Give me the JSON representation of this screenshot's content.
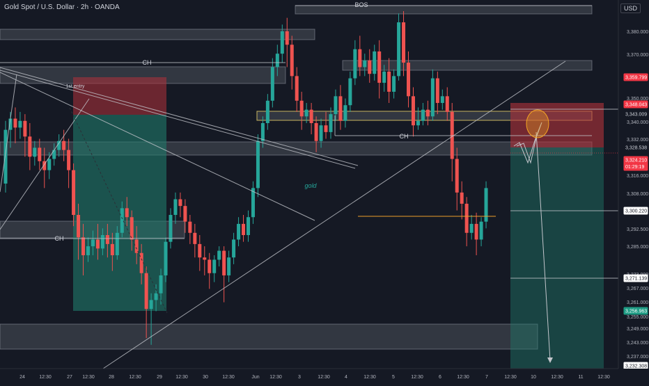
{
  "header": {
    "symbol": "Gold Spot / U.S. Dollar · 2h · OANDA",
    "currency": "USD"
  },
  "colors": {
    "background": "#151924",
    "up": "#26a69a",
    "down": "#ef5350",
    "zone": "#6b6f78",
    "zone_border": "#9aa0aa",
    "highlight_zone": "#c8b560",
    "stop": "#b2323b",
    "target": "#1f7a6b",
    "line": "#c3c6cc",
    "last_price": "#f23645",
    "target_tag": "#1e9c84",
    "signal_line": "#f0a02a"
  },
  "chart_data": {
    "type": "candlestick",
    "title": "",
    "ylim": [
      3229,
      3401
    ],
    "x_ticks": [
      "24",
      "12:30",
      "27",
      "12:30",
      "28",
      "12:30",
      "29",
      "12:30",
      "30",
      "12:30",
      "Jun",
      "12:30",
      "3",
      "12:30",
      "4",
      "12:30",
      "5",
      "12:30",
      "6",
      "12:30",
      "7",
      "12:30",
      "10",
      "12:30",
      "11",
      "12:30"
    ],
    "y_ticks": [
      "3,380.000",
      "3,370.000",
      "3,350.000",
      "3,340.000",
      "3,332.000",
      "3,316.000",
      "3,308.000",
      "3,292.500",
      "3,285.000",
      "3,273.000",
      "3,267.000",
      "3,261.000",
      "3,255.000",
      "3,249.000",
      "3,243.000",
      "3,237.000"
    ],
    "price_tags": [
      {
        "value": "3,359.799",
        "kind": "red"
      },
      {
        "value": "3,348.043",
        "kind": "red"
      },
      {
        "value": "3,343.009",
        "kind": "plain"
      },
      {
        "value": "3,328.538",
        "kind": "plain"
      },
      {
        "value": "3,324.210",
        "kind": "red",
        "sub": "01:29:19"
      },
      {
        "value": "3,300.220",
        "kind": "outline"
      },
      {
        "value": "3,271.139",
        "kind": "outline"
      },
      {
        "value": "3,256.963",
        "kind": "green"
      },
      {
        "value": "3,232.308",
        "kind": "outline"
      }
    ],
    "labels": {
      "bos": "BOS",
      "ch_top": "CH",
      "ch_mid": "CH",
      "ch_low": "CH",
      "first_entry": "1st entry",
      "gold": "gold"
    },
    "candles": [
      {
        "o": 3324,
        "h": 3352,
        "c": 3348,
        "l": 3320
      },
      {
        "o": 3348,
        "h": 3356,
        "c": 3353,
        "l": 3340
      },
      {
        "o": 3353,
        "h": 3358,
        "c": 3349,
        "l": 3342
      },
      {
        "o": 3349,
        "h": 3356,
        "c": 3352,
        "l": 3344
      },
      {
        "o": 3352,
        "h": 3355,
        "c": 3345,
        "l": 3336
      },
      {
        "o": 3345,
        "h": 3351,
        "c": 3336,
        "l": 3330
      },
      {
        "o": 3336,
        "h": 3343,
        "c": 3340,
        "l": 3332
      },
      {
        "o": 3340,
        "h": 3344,
        "c": 3334,
        "l": 3330
      },
      {
        "o": 3334,
        "h": 3340,
        "c": 3330,
        "l": 3322
      },
      {
        "o": 3330,
        "h": 3338,
        "c": 3335,
        "l": 3326
      },
      {
        "o": 3335,
        "h": 3342,
        "c": 3339,
        "l": 3332
      },
      {
        "o": 3339,
        "h": 3346,
        "c": 3343,
        "l": 3336
      },
      {
        "o": 3343,
        "h": 3348,
        "c": 3339,
        "l": 3334
      },
      {
        "o": 3339,
        "h": 3344,
        "c": 3330,
        "l": 3322
      },
      {
        "o": 3330,
        "h": 3333,
        "c": 3310,
        "l": 3305
      },
      {
        "o": 3310,
        "h": 3315,
        "c": 3300,
        "l": 3290
      },
      {
        "o": 3300,
        "h": 3306,
        "c": 3292,
        "l": 3283
      },
      {
        "o": 3292,
        "h": 3300,
        "c": 3296,
        "l": 3289
      },
      {
        "o": 3296,
        "h": 3303,
        "c": 3299,
        "l": 3292
      },
      {
        "o": 3299,
        "h": 3306,
        "c": 3295,
        "l": 3290
      },
      {
        "o": 3295,
        "h": 3304,
        "c": 3301,
        "l": 3292
      },
      {
        "o": 3301,
        "h": 3306,
        "c": 3297,
        "l": 3291
      },
      {
        "o": 3297,
        "h": 3302,
        "c": 3292,
        "l": 3285
      },
      {
        "o": 3292,
        "h": 3305,
        "c": 3302,
        "l": 3290
      },
      {
        "o": 3302,
        "h": 3316,
        "c": 3313,
        "l": 3300
      },
      {
        "o": 3313,
        "h": 3318,
        "c": 3309,
        "l": 3305
      },
      {
        "o": 3309,
        "h": 3312,
        "c": 3299,
        "l": 3294
      },
      {
        "o": 3299,
        "h": 3305,
        "c": 3293,
        "l": 3288
      },
      {
        "o": 3293,
        "h": 3297,
        "c": 3284,
        "l": 3279
      },
      {
        "o": 3284,
        "h": 3287,
        "c": 3268,
        "l": 3255
      },
      {
        "o": 3268,
        "h": 3275,
        "c": 3272,
        "l": 3252
      },
      {
        "o": 3272,
        "h": 3279,
        "c": 3275,
        "l": 3267
      },
      {
        "o": 3275,
        "h": 3286,
        "c": 3283,
        "l": 3270
      },
      {
        "o": 3283,
        "h": 3300,
        "c": 3298,
        "l": 3280
      },
      {
        "o": 3298,
        "h": 3313,
        "c": 3310,
        "l": 3295
      },
      {
        "o": 3310,
        "h": 3320,
        "c": 3317,
        "l": 3306
      },
      {
        "o": 3317,
        "h": 3320,
        "c": 3314,
        "l": 3309
      },
      {
        "o": 3314,
        "h": 3317,
        "c": 3307,
        "l": 3302
      },
      {
        "o": 3307,
        "h": 3310,
        "c": 3302,
        "l": 3297
      },
      {
        "o": 3302,
        "h": 3306,
        "c": 3297,
        "l": 3291
      },
      {
        "o": 3297,
        "h": 3301,
        "c": 3291,
        "l": 3285
      },
      {
        "o": 3291,
        "h": 3296,
        "c": 3290,
        "l": 3283
      },
      {
        "o": 3290,
        "h": 3293,
        "c": 3284,
        "l": 3277
      },
      {
        "o": 3284,
        "h": 3292,
        "c": 3290,
        "l": 3280
      },
      {
        "o": 3290,
        "h": 3296,
        "c": 3294,
        "l": 3287
      },
      {
        "o": 3294,
        "h": 3296,
        "c": 3283,
        "l": 3271
      },
      {
        "o": 3283,
        "h": 3294,
        "c": 3291,
        "l": 3280
      },
      {
        "o": 3291,
        "h": 3302,
        "c": 3299,
        "l": 3288
      },
      {
        "o": 3299,
        "h": 3309,
        "c": 3306,
        "l": 3296
      },
      {
        "o": 3306,
        "h": 3310,
        "c": 3301,
        "l": 3298
      },
      {
        "o": 3301,
        "h": 3312,
        "c": 3309,
        "l": 3298
      },
      {
        "o": 3309,
        "h": 3325,
        "c": 3322,
        "l": 3306
      },
      {
        "o": 3322,
        "h": 3346,
        "c": 3343,
        "l": 3318
      },
      {
        "o": 3343,
        "h": 3354,
        "c": 3351,
        "l": 3340
      },
      {
        "o": 3351,
        "h": 3364,
        "c": 3361,
        "l": 3348
      },
      {
        "o": 3361,
        "h": 3380,
        "c": 3376,
        "l": 3358
      },
      {
        "o": 3376,
        "h": 3386,
        "c": 3382,
        "l": 3372
      },
      {
        "o": 3382,
        "h": 3395,
        "c": 3392,
        "l": 3378
      },
      {
        "o": 3392,
        "h": 3398,
        "c": 3386,
        "l": 3376
      },
      {
        "o": 3386,
        "h": 3390,
        "c": 3372,
        "l": 3366
      },
      {
        "o": 3372,
        "h": 3376,
        "c": 3361,
        "l": 3356
      },
      {
        "o": 3361,
        "h": 3365,
        "c": 3354,
        "l": 3348
      },
      {
        "o": 3354,
        "h": 3360,
        "c": 3357,
        "l": 3351
      },
      {
        "o": 3357,
        "h": 3360,
        "c": 3351,
        "l": 3346
      },
      {
        "o": 3351,
        "h": 3354,
        "c": 3343,
        "l": 3338
      },
      {
        "o": 3343,
        "h": 3353,
        "c": 3350,
        "l": 3340
      },
      {
        "o": 3350,
        "h": 3356,
        "c": 3347,
        "l": 3344
      },
      {
        "o": 3347,
        "h": 3358,
        "c": 3355,
        "l": 3344
      },
      {
        "o": 3355,
        "h": 3366,
        "c": 3363,
        "l": 3352
      },
      {
        "o": 3363,
        "h": 3368,
        "c": 3352,
        "l": 3348
      },
      {
        "o": 3352,
        "h": 3362,
        "c": 3359,
        "l": 3349
      },
      {
        "o": 3359,
        "h": 3374,
        "c": 3371,
        "l": 3356
      },
      {
        "o": 3371,
        "h": 3388,
        "c": 3384,
        "l": 3368
      },
      {
        "o": 3384,
        "h": 3390,
        "c": 3376,
        "l": 3372
      },
      {
        "o": 3376,
        "h": 3382,
        "c": 3379,
        "l": 3372
      },
      {
        "o": 3379,
        "h": 3384,
        "c": 3373,
        "l": 3369
      },
      {
        "o": 3373,
        "h": 3386,
        "c": 3383,
        "l": 3370
      },
      {
        "o": 3383,
        "h": 3388,
        "c": 3369,
        "l": 3362
      },
      {
        "o": 3369,
        "h": 3377,
        "c": 3374,
        "l": 3365
      },
      {
        "o": 3374,
        "h": 3380,
        "c": 3365,
        "l": 3360
      },
      {
        "o": 3365,
        "h": 3375,
        "c": 3372,
        "l": 3362
      },
      {
        "o": 3372,
        "h": 3400,
        "c": 3396,
        "l": 3370
      },
      {
        "o": 3396,
        "h": 3401,
        "c": 3378,
        "l": 3372
      },
      {
        "o": 3378,
        "h": 3383,
        "c": 3363,
        "l": 3358
      },
      {
        "o": 3363,
        "h": 3367,
        "c": 3350,
        "l": 3345
      },
      {
        "o": 3350,
        "h": 3358,
        "c": 3352,
        "l": 3348
      },
      {
        "o": 3352,
        "h": 3360,
        "c": 3357,
        "l": 3350
      },
      {
        "o": 3357,
        "h": 3361,
        "c": 3354,
        "l": 3350
      },
      {
        "o": 3354,
        "h": 3375,
        "c": 3371,
        "l": 3352
      },
      {
        "o": 3371,
        "h": 3374,
        "c": 3360,
        "l": 3355
      },
      {
        "o": 3360,
        "h": 3366,
        "c": 3363,
        "l": 3357
      },
      {
        "o": 3363,
        "h": 3367,
        "c": 3356,
        "l": 3352
      },
      {
        "o": 3356,
        "h": 3360,
        "c": 3335,
        "l": 3325
      },
      {
        "o": 3335,
        "h": 3340,
        "c": 3320,
        "l": 3312
      },
      {
        "o": 3320,
        "h": 3325,
        "c": 3315,
        "l": 3308
      },
      {
        "o": 3315,
        "h": 3318,
        "c": 3302,
        "l": 3296
      },
      {
        "o": 3302,
        "h": 3310,
        "c": 3306,
        "l": 3299
      },
      {
        "o": 3306,
        "h": 3311,
        "c": 3299,
        "l": 3292
      },
      {
        "o": 3299,
        "h": 3309,
        "c": 3307,
        "l": 3296
      },
      {
        "o": 3307,
        "h": 3325,
        "c": 3322,
        "l": 3304
      }
    ]
  }
}
